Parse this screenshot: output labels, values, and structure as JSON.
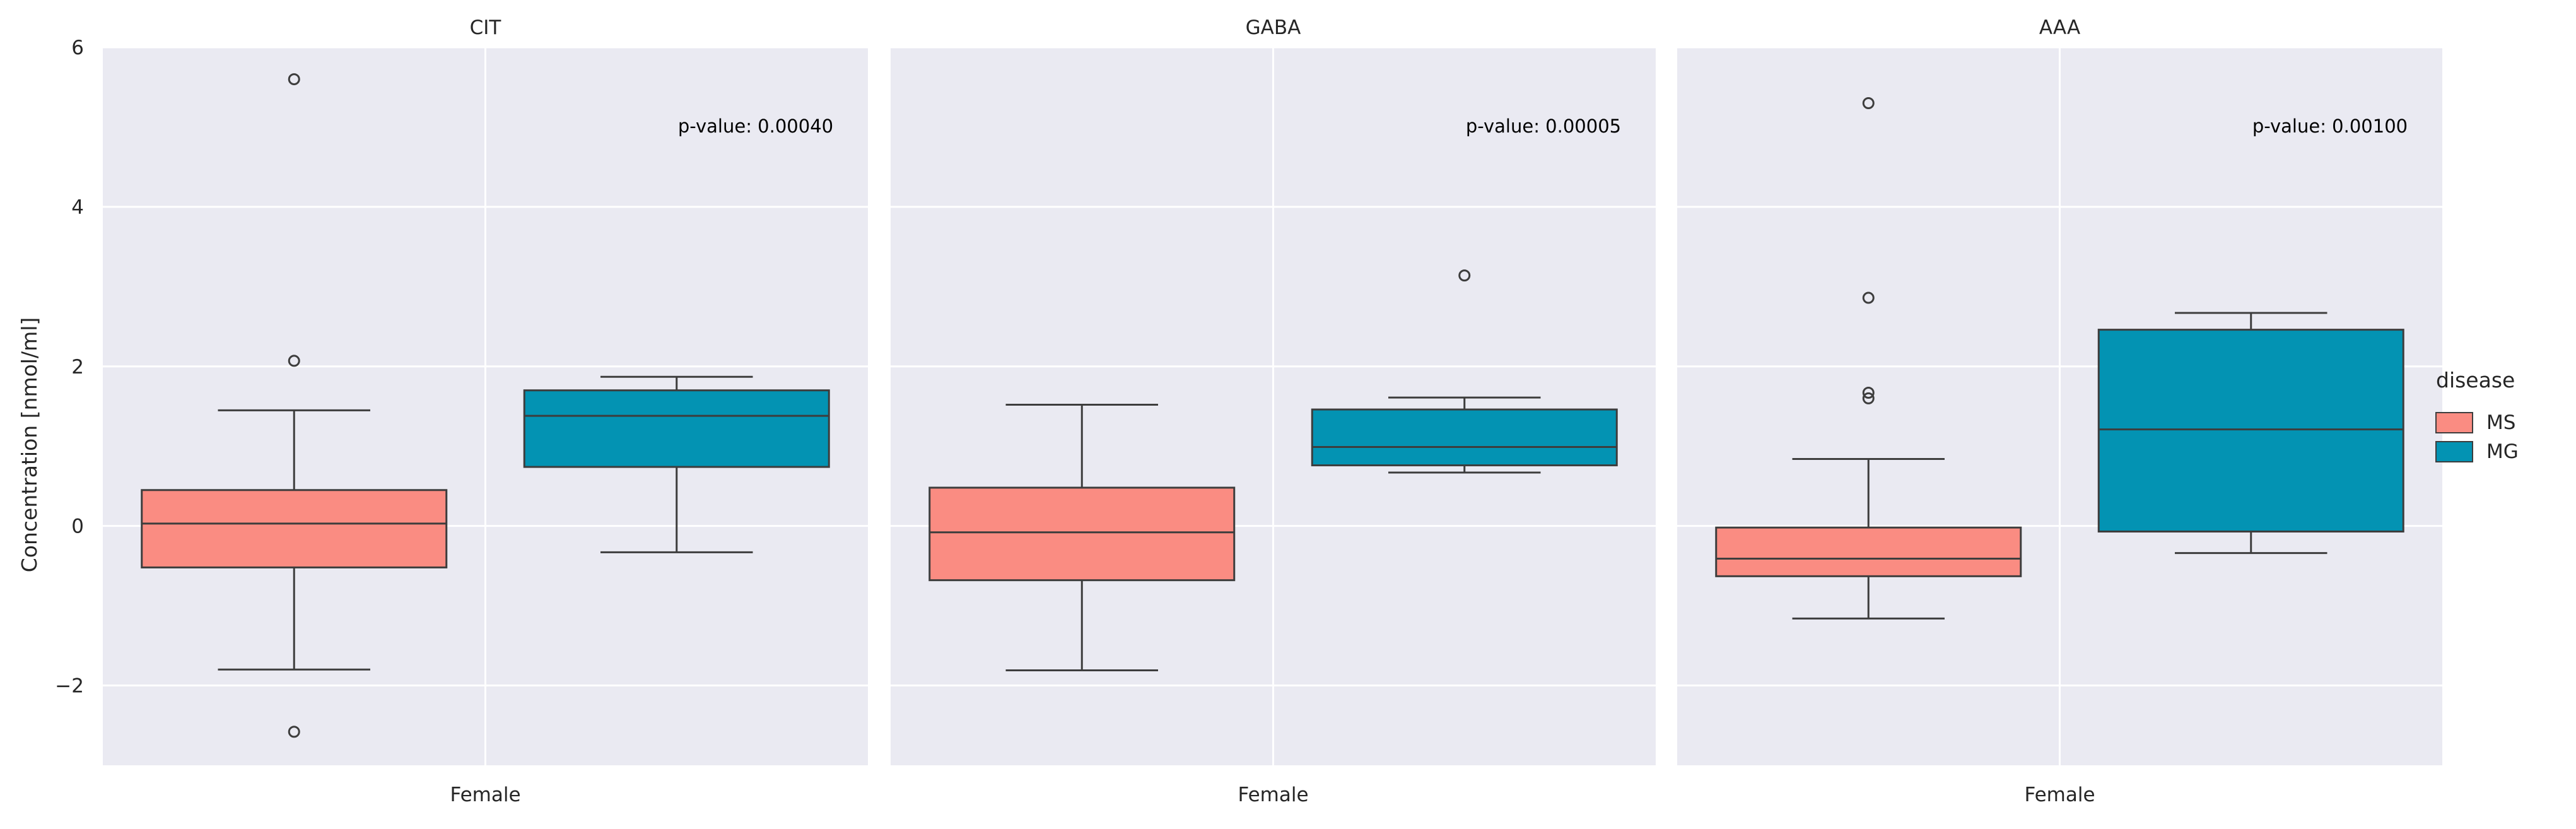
{
  "chart_data": {
    "type": "box",
    "ylabel": "Concentration [nmol/ml]",
    "ylim": [
      -3,
      6
    ],
    "yticks": [
      -2,
      0,
      2,
      4,
      6
    ],
    "ytick_labels": [
      "−2",
      "0",
      "2",
      "4",
      "6"
    ],
    "grid": true,
    "legend": {
      "title": "disease",
      "placement": "right",
      "entries": [
        {
          "name": "MS",
          "color": "#fa8c82"
        },
        {
          "name": "MG",
          "color": "#0393b3"
        }
      ]
    },
    "panels": [
      {
        "title": "CIT",
        "category": "Female",
        "annotation": "p-value: 0.00040",
        "boxes": [
          {
            "series": "MS",
            "whisker_low": -1.8,
            "q1": -0.52,
            "median": 0.03,
            "q3": 0.45,
            "whisker_high": 1.45,
            "outliers": [
              5.6,
              2.07,
              -2.58
            ]
          },
          {
            "series": "MG",
            "whisker_low": -0.33,
            "q1": 0.74,
            "median": 1.38,
            "q3": 1.7,
            "whisker_high": 1.87,
            "outliers": []
          }
        ]
      },
      {
        "title": "GABA",
        "category": "Female",
        "annotation": "p-value: 0.00005",
        "boxes": [
          {
            "series": "MS",
            "whisker_low": -1.81,
            "q1": -0.68,
            "median": -0.08,
            "q3": 0.48,
            "whisker_high": 1.52,
            "outliers": []
          },
          {
            "series": "MG",
            "whisker_low": 0.67,
            "q1": 0.76,
            "median": 0.99,
            "q3": 1.46,
            "whisker_high": 1.61,
            "outliers": [
              3.14
            ]
          }
        ]
      },
      {
        "title": "AAA",
        "category": "Female",
        "annotation": "p-value: 0.00100",
        "boxes": [
          {
            "series": "MS",
            "whisker_low": -1.16,
            "q1": -0.63,
            "median": -0.41,
            "q3": -0.02,
            "whisker_high": 0.84,
            "outliers": [
              5.3,
              2.86,
              1.67,
              1.6
            ]
          },
          {
            "series": "MG",
            "whisker_low": -0.34,
            "q1": -0.07,
            "median": 1.21,
            "q3": 2.46,
            "whisker_high": 2.67,
            "outliers": []
          }
        ]
      }
    ]
  }
}
